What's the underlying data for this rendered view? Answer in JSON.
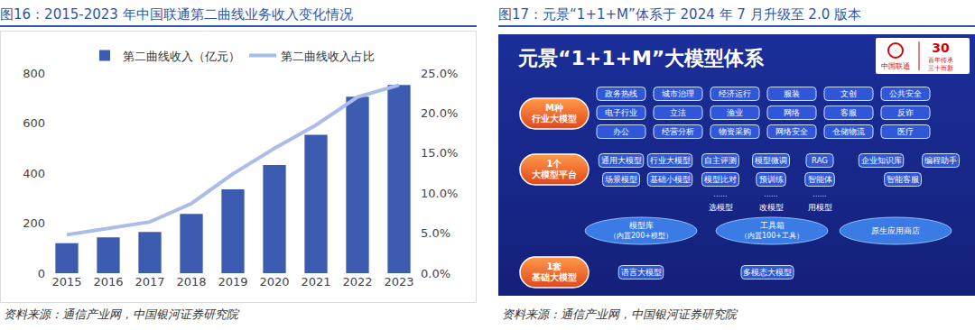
{
  "chart_data": {
    "type": "bar",
    "title": "图16：2015-2023 年中国联通第二曲线业务收入变化情况",
    "source": "资料来源：通信产业网，中国银河证券研究院",
    "categories": [
      "2015",
      "2016",
      "2017",
      "2018",
      "2019",
      "2020",
      "2021",
      "2022",
      "2023"
    ],
    "series": [
      {
        "name": "第二曲线收入（亿元）",
        "type": "bar",
        "color": "#3b5cb0",
        "values": [
          120,
          143,
          165,
          237,
          335,
          432,
          553,
          705,
          752
        ]
      },
      {
        "name": "第二曲线收入占比",
        "type": "line",
        "axis": "y2",
        "color": "#a9bde8",
        "values": [
          4.8,
          5.6,
          6.4,
          8.7,
          12.4,
          15.6,
          18.5,
          22.0,
          23.5
        ]
      }
    ],
    "ylim": [
      0,
      800
    ],
    "yticks": [
      0,
      200,
      400,
      600,
      800
    ],
    "y2lim": [
      0,
      25
    ],
    "y2ticks": [
      {
        "value": 0,
        "label": "0.0%"
      },
      {
        "value": 5,
        "label": "5.0%"
      },
      {
        "value": 10,
        "label": "10.0%"
      },
      {
        "value": 15,
        "label": "15.0%"
      },
      {
        "value": 20,
        "label": "20.0%"
      },
      {
        "value": 25,
        "label": "25.0%"
      }
    ],
    "legend": "top",
    "grid": false,
    "data_labels": false
  },
  "diagram": {
    "caption": "图17：元景“1+1+M”体系于 2024 年 7 月升级至 2.0 版本",
    "source": "资料来源：通信产业网，中国银河证券研究院",
    "title": "元景“1+1+M”大模型体系",
    "logo": {
      "brand": "中国联通",
      "number": "30",
      "slogan": [
        "百年传承",
        "三十而新"
      ]
    },
    "layers": [
      {
        "label": [
          "M种",
          "行业大模型"
        ],
        "rows": [
          [
            "政务热线",
            "城市治理",
            "经济运行",
            "服装",
            "文创",
            "公共安全"
          ],
          [
            "电子行业",
            "立法",
            "渔业",
            "网络",
            "客服",
            "反诈"
          ],
          [
            "办公",
            "经营分析",
            "物资采购",
            "网络安全",
            "仓储物流",
            "医疗"
          ]
        ]
      },
      {
        "label": [
          "1个",
          "大模型平台"
        ],
        "rows": [
          [
            "通用大模型",
            "行业大模型",
            "自主评测",
            "模型微调",
            "RAG",
            "企业知识库",
            "编程助手"
          ],
          [
            "场景模型",
            "基础小模型",
            "模型比对",
            "预训练",
            "智能体",
            "智能客服"
          ]
        ],
        "steps": [
          {
            "dots": "......",
            "label": "选模型"
          },
          {
            "dots": "......",
            "label": "改模型"
          },
          {
            "dots": "......",
            "label": "用模型"
          }
        ],
        "pools": [
          {
            "title": "模型库",
            "note": "（内置200+模型）"
          },
          {
            "title": "工具箱",
            "note": "（内置100+工具）"
          },
          {
            "title": "原生应用商店"
          }
        ]
      },
      {
        "label": [
          "1套",
          "基础大模型"
        ],
        "rows": [
          [
            "语言大模型",
            "多模态大模型"
          ]
        ]
      }
    ]
  }
}
